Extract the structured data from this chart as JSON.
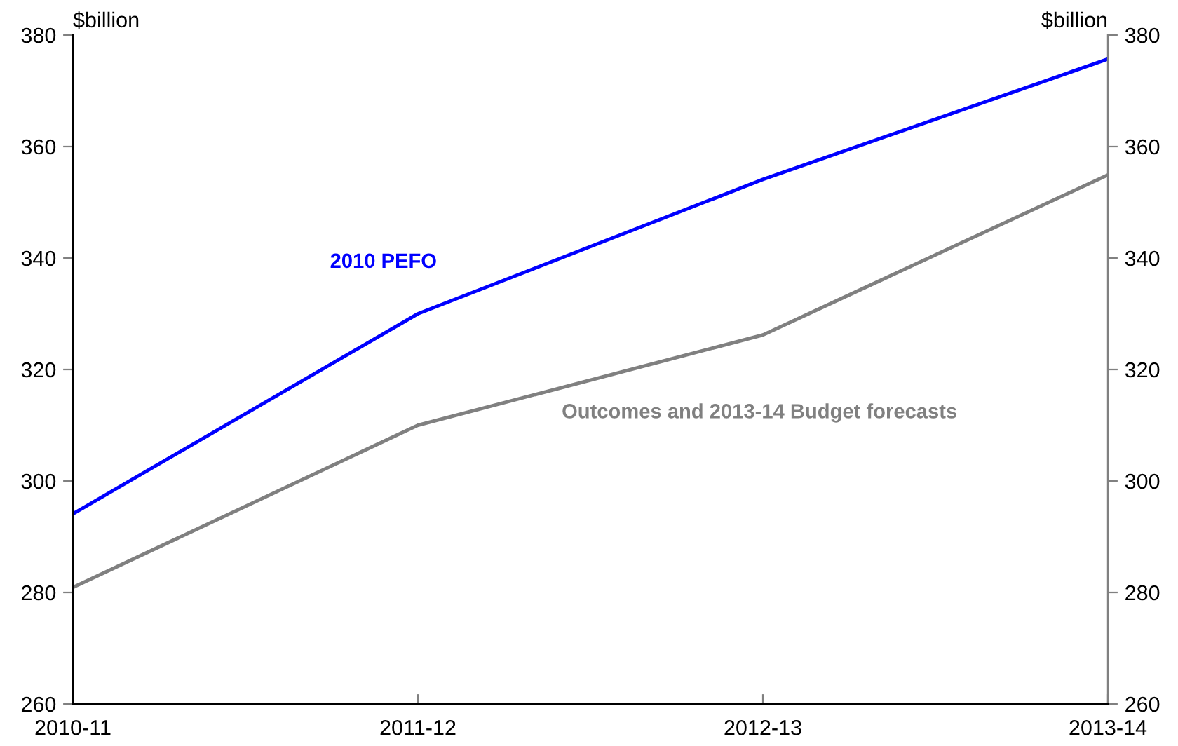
{
  "chart_data": {
    "type": "line",
    "categories": [
      "2010-11",
      "2011-12",
      "2012-13",
      "2013-14"
    ],
    "series": [
      {
        "name": "2010 PEFO",
        "color": "#0000ff",
        "values": [
          294.1,
          330,
          354.1,
          375.7
        ]
      },
      {
        "name": "Outcomes and 2013-14 Budget forecasts",
        "color": "#808080",
        "values": [
          280.9,
          310,
          326.2,
          354.9
        ]
      }
    ],
    "ylabel": "$billion",
    "y2label": "$billion",
    "ylim": [
      260,
      380
    ],
    "yticks": [
      260,
      280,
      300,
      320,
      340,
      360,
      380
    ],
    "y2lim": [
      260,
      380
    ],
    "y2ticks": [
      260,
      280,
      300,
      320,
      340,
      360,
      380
    ],
    "grid": false,
    "legend": false,
    "marker": "none",
    "line_style": "solid"
  }
}
